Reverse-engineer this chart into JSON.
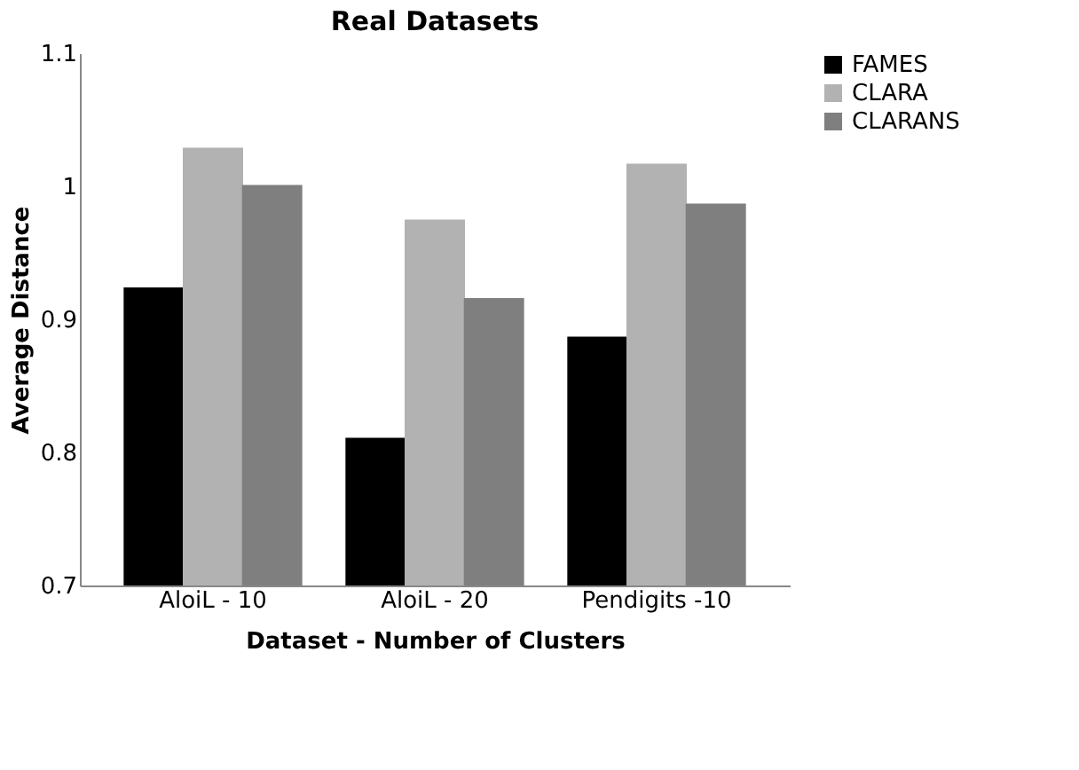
{
  "chart_data": {
    "type": "bar",
    "title": "Real Datasets",
    "xlabel": "Dataset - Number of Clusters",
    "ylabel": "Average Distance",
    "categories": [
      "AloiL - 10",
      "AloiL - 20",
      "Pendigits -10"
    ],
    "series": [
      {
        "name": "FAMES",
        "color": "#000000",
        "values": [
          0.924,
          0.811,
          0.887
        ]
      },
      {
        "name": "CLARA",
        "color": "#b2b2b2",
        "values": [
          1.029,
          0.975,
          1.017
        ]
      },
      {
        "name": "CLARANS",
        "color": "#7f7f7f",
        "values": [
          1.001,
          0.916,
          0.987
        ]
      }
    ],
    "ylim": [
      0.7,
      1.1
    ],
    "yticks": [
      0.7,
      0.8,
      0.9,
      1,
      1.1
    ],
    "grid": false,
    "legend": "right"
  }
}
